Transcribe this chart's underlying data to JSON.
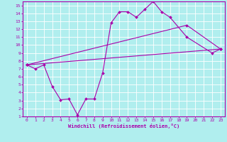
{
  "xlabel": "Windchill (Refroidissement éolien,°C)",
  "background_color": "#b0eeee",
  "grid_color": "#ffffff",
  "line_color": "#aa00aa",
  "x_values": [
    0,
    1,
    2,
    3,
    4,
    5,
    6,
    7,
    8,
    9,
    10,
    11,
    12,
    13,
    14,
    15,
    16,
    17,
    18,
    19,
    20,
    21,
    22,
    23
  ],
  "line1_x": [
    0,
    1,
    2,
    3,
    4,
    5,
    6,
    7,
    8,
    9,
    10,
    11,
    12,
    13,
    14,
    15,
    16,
    17,
    19,
    22,
    23
  ],
  "line1_y": [
    7.5,
    7.0,
    7.5,
    4.8,
    3.1,
    3.2,
    1.2,
    3.2,
    3.2,
    6.5,
    12.8,
    14.2,
    14.2,
    13.5,
    14.5,
    15.5,
    14.2,
    13.5,
    11.0,
    9.0,
    9.5
  ],
  "line2_x": [
    0,
    23
  ],
  "line2_y": [
    7.5,
    9.5
  ],
  "line3_x": [
    0,
    19,
    23
  ],
  "line3_y": [
    7.5,
    12.5,
    9.5
  ],
  "xlim": [
    -0.5,
    23.5
  ],
  "ylim": [
    1,
    15.5
  ],
  "xticks": [
    0,
    1,
    2,
    3,
    4,
    5,
    6,
    7,
    8,
    9,
    10,
    11,
    12,
    13,
    14,
    15,
    16,
    17,
    18,
    19,
    20,
    21,
    22,
    23
  ],
  "yticks": [
    1,
    2,
    3,
    4,
    5,
    6,
    7,
    8,
    9,
    10,
    11,
    12,
    13,
    14,
    15
  ]
}
